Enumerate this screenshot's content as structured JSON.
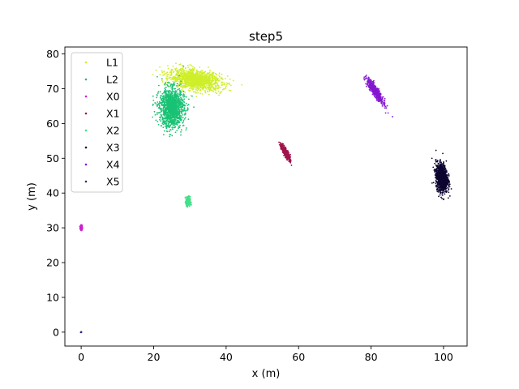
{
  "chart_data": {
    "type": "scatter",
    "title": "step5",
    "xlabel": "x (m)",
    "ylabel": "y (m)",
    "xlim": [
      -4.5,
      106.5
    ],
    "ylim": [
      -4,
      82
    ],
    "xticks": [
      0,
      20,
      40,
      60,
      80,
      100
    ],
    "yticks": [
      0,
      10,
      20,
      30,
      40,
      50,
      60,
      70,
      80
    ],
    "grid": false,
    "legend_position": "top-left",
    "series": [
      {
        "name": "L1",
        "color": "#cfee2a",
        "cluster": {
          "cx": 31.5,
          "cy": 72.5,
          "sx": 3.6,
          "sy": 1.5,
          "rho": -0.35,
          "n": 1300
        }
      },
      {
        "name": "L2",
        "color": "#18c274",
        "cluster": {
          "cx": 25.0,
          "cy": 64.5,
          "sx": 1.7,
          "sy": 2.8,
          "rho": 0.0,
          "n": 1300
        }
      },
      {
        "name": "X0",
        "color": "#cc22cc",
        "cluster": {
          "cx": 0.0,
          "cy": 30.0,
          "sx": 0.15,
          "sy": 0.35,
          "rho": 0.0,
          "n": 120
        }
      },
      {
        "name": "X1",
        "color": "#a0154c",
        "cluster": {
          "cx": 56.5,
          "cy": 51.5,
          "sx": 0.65,
          "sy": 1.2,
          "rho": -0.85,
          "n": 400
        }
      },
      {
        "name": "X2",
        "color": "#44e08a",
        "cluster": {
          "cx": 29.5,
          "cy": 37.5,
          "sx": 0.3,
          "sy": 0.7,
          "rho": 0.0,
          "n": 250
        }
      },
      {
        "name": "X3",
        "color": "#0d0630",
        "cluster": {
          "cx": 99.5,
          "cy": 44.5,
          "sx": 0.8,
          "sy": 2.0,
          "rho": -0.2,
          "n": 1100
        }
      },
      {
        "name": "X4",
        "color": "#8418d0",
        "cluster": {
          "cx": 81.2,
          "cy": 69.2,
          "sx": 1.1,
          "sy": 1.7,
          "rho": -0.9,
          "n": 600
        }
      },
      {
        "name": "X5",
        "color": "#2a2a88",
        "cluster": {
          "cx": 0.0,
          "cy": 0.0,
          "sx": 0.05,
          "sy": 0.08,
          "rho": 0.0,
          "n": 30
        }
      }
    ]
  }
}
